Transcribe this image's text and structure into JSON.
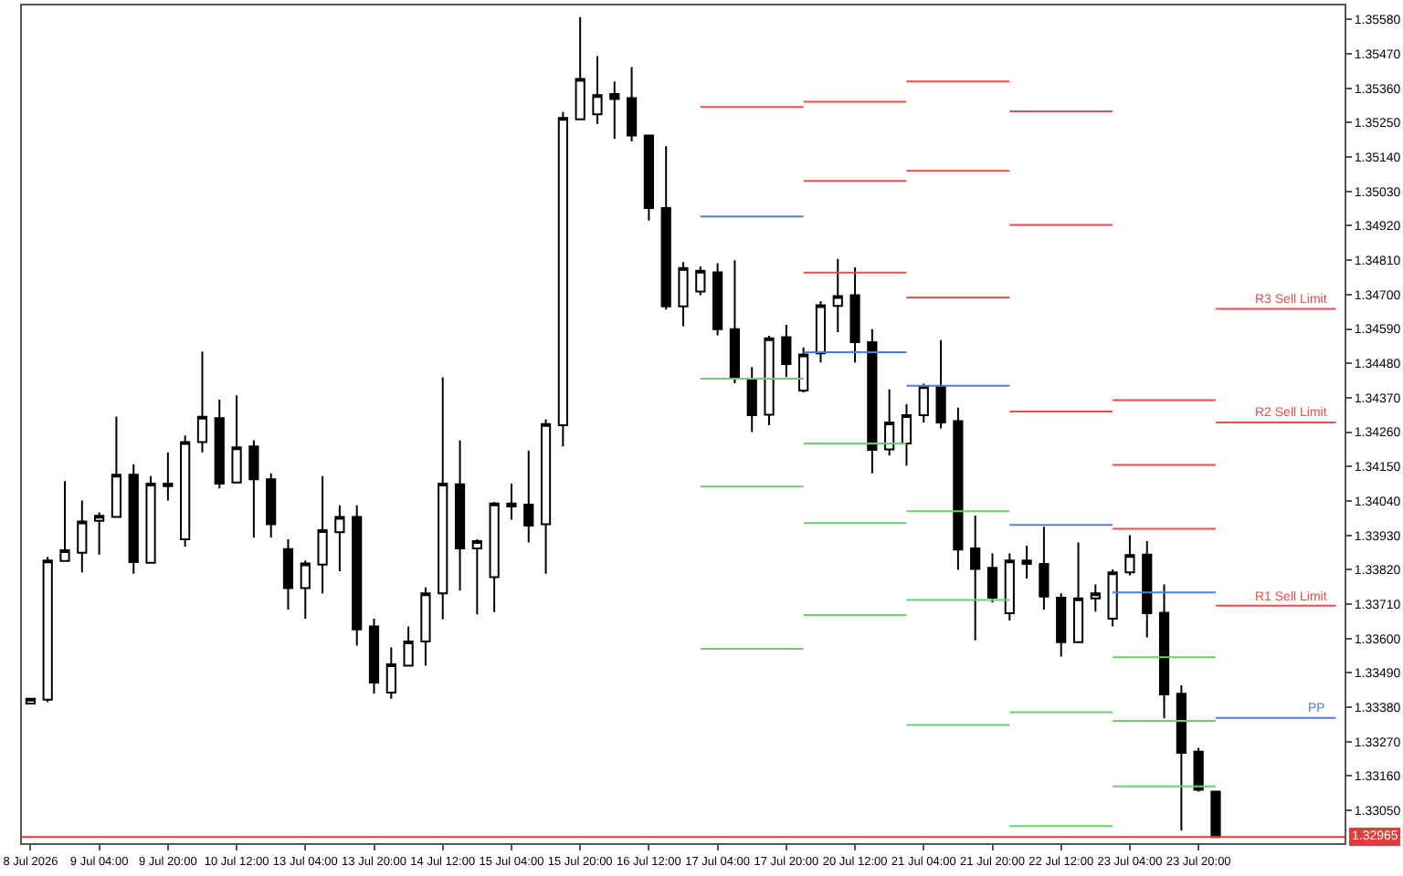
{
  "chart_data": {
    "type": "candlestick",
    "categories": [
      "8 Jul 2026",
      null,
      null,
      null,
      "9 Jul 04:00",
      null,
      null,
      null,
      "9 Jul 20:00",
      null,
      null,
      null,
      "10 Jul 12:00",
      null,
      null,
      null,
      "13 Jul 04:00",
      null,
      null,
      null,
      "13 Jul 20:00",
      null,
      null,
      null,
      "14 Jul 12:00",
      null,
      null,
      null,
      "15 Jul 04:00",
      null,
      null,
      null,
      "15 Jul 20:00",
      null,
      null,
      null,
      "16 Jul 12:00",
      null,
      null,
      null,
      "17 Jul 04:00",
      null,
      null,
      null,
      "17 Jul 20:00",
      null,
      null,
      null,
      "20 Jul 12:00",
      null,
      null,
      null,
      "21 Jul 04:00",
      null,
      null,
      null,
      "21 Jul 20:00",
      null,
      null,
      null,
      "22 Jul 12:00",
      null,
      null,
      null,
      "23 Jul 04:00",
      null,
      null,
      null,
      "23 Jul 20:00",
      null,
      null,
      null,
      null,
      null,
      null,
      null,
      null
    ],
    "ohlc": [
      [
        1.33392,
        1.33407,
        1.33392,
        1.33407
      ],
      [
        1.33404,
        1.33861,
        1.33396,
        1.33849
      ],
      [
        1.33848,
        1.34103,
        1.33848,
        1.33882
      ],
      [
        1.33874,
        1.34041,
        1.33811,
        1.33974
      ],
      [
        1.33976,
        1.34003,
        1.33868,
        1.33992
      ],
      [
        1.33989,
        1.3431,
        1.33989,
        1.34124
      ],
      [
        1.34124,
        1.34157,
        1.33807,
        1.33844
      ],
      [
        1.33842,
        1.34119,
        1.33842,
        1.34095
      ],
      [
        1.34095,
        1.34195,
        1.34041,
        1.34087
      ],
      [
        1.33917,
        1.34249,
        1.33894,
        1.34228
      ],
      [
        1.34228,
        1.34518,
        1.34195,
        1.34309
      ],
      [
        1.34305,
        1.34364,
        1.3408,
        1.34095
      ],
      [
        1.34099,
        1.34378,
        1.34095,
        1.34211
      ],
      [
        1.34214,
        1.34234,
        1.33923,
        1.34109
      ],
      [
        1.34109,
        1.34128,
        1.33923,
        1.33965
      ],
      [
        1.33886,
        1.33917,
        1.33692,
        1.33761
      ],
      [
        1.33761,
        1.33849,
        1.33663,
        1.3384
      ],
      [
        1.33836,
        1.34119,
        1.33744,
        1.33946
      ],
      [
        1.3394,
        1.34026,
        1.33815,
        1.33989
      ],
      [
        1.33989,
        1.34026,
        1.33577,
        1.33629
      ],
      [
        1.33638,
        1.33663,
        1.33423,
        1.33459
      ],
      [
        1.33427,
        1.33571,
        1.33407,
        1.33517
      ],
      [
        1.33513,
        1.33638,
        1.3351,
        1.3359
      ],
      [
        1.3359,
        1.33763,
        1.33513,
        1.33744
      ],
      [
        1.33744,
        1.34435,
        1.33661,
        1.34095
      ],
      [
        1.34093,
        1.34234,
        1.33753,
        1.33888
      ],
      [
        1.33888,
        1.33917,
        1.33677,
        1.33911
      ],
      [
        1.33796,
        1.34036,
        1.33684,
        1.34032
      ],
      [
        1.34032,
        1.34095,
        1.3398,
        1.34022
      ],
      [
        1.34028,
        1.34201,
        1.33907,
        1.33961
      ],
      [
        1.33965,
        1.34301,
        1.33807,
        1.34286
      ],
      [
        1.34282,
        1.35284,
        1.34214,
        1.35265
      ],
      [
        1.35261,
        1.35588,
        1.35261,
        1.3539
      ],
      [
        1.35277,
        1.35463,
        1.35246,
        1.35338
      ],
      [
        1.35342,
        1.35382,
        1.35198,
        1.35326
      ],
      [
        1.35329,
        1.35428,
        1.3519,
        1.35209
      ],
      [
        1.35209,
        1.35209,
        1.34937,
        1.34977
      ],
      [
        1.34977,
        1.35175,
        1.34652,
        1.34662
      ],
      [
        1.34662,
        1.34804,
        1.34599,
        1.34785
      ],
      [
        1.3471,
        1.3479,
        1.34698,
        1.34776
      ],
      [
        1.34771,
        1.348,
        1.3457,
        1.34589
      ],
      [
        1.34589,
        1.3481,
        1.34416,
        1.34431
      ],
      [
        1.3443,
        1.34468,
        1.3426,
        1.34314
      ],
      [
        1.34316,
        1.34568,
        1.34282,
        1.3456
      ],
      [
        1.34564,
        1.34603,
        1.34436,
        1.34478
      ],
      [
        1.34393,
        1.34531,
        1.34387,
        1.34508
      ],
      [
        1.34512,
        1.34679,
        1.34483,
        1.34666
      ],
      [
        1.34664,
        1.34814,
        1.3458,
        1.34695
      ],
      [
        1.34698,
        1.34787,
        1.34483,
        1.34548
      ],
      [
        1.34548,
        1.34589,
        1.34128,
        1.34203
      ],
      [
        1.34205,
        1.34397,
        1.34185,
        1.34291
      ],
      [
        1.34224,
        1.34349,
        1.34153,
        1.34314
      ],
      [
        1.34314,
        1.34415,
        1.34291,
        1.34407
      ],
      [
        1.34407,
        1.34554,
        1.34272,
        1.34291
      ],
      [
        1.34295,
        1.34338,
        1.33819,
        1.33884
      ],
      [
        1.33888,
        1.33993,
        1.33594,
        1.33822
      ],
      [
        1.33826,
        1.33872,
        1.33715,
        1.3373
      ],
      [
        1.33681,
        1.33872,
        1.33657,
        1.33849
      ],
      [
        1.33849,
        1.33897,
        1.33792,
        1.33838
      ],
      [
        1.33838,
        1.33957,
        1.33692,
        1.33734
      ],
      [
        1.3373,
        1.33744,
        1.33542,
        1.33588
      ],
      [
        1.33588,
        1.33907,
        1.33588,
        1.33728
      ],
      [
        1.33728,
        1.33773,
        1.33686,
        1.33744
      ],
      [
        1.33663,
        1.33821,
        1.33638,
        1.33811
      ],
      [
        1.33811,
        1.3393,
        1.33802,
        1.33867
      ],
      [
        1.33868,
        1.33911,
        1.33603,
        1.33681
      ],
      [
        1.33682,
        1.33773,
        1.33344,
        1.33421
      ],
      [
        1.33423,
        1.3345,
        1.32985,
        1.33234
      ],
      [
        1.33238,
        1.3325,
        1.3311,
        1.33116
      ],
      [
        1.3311,
        1.3311,
        1.32965,
        1.32965
      ],
      null,
      null,
      null,
      null,
      null,
      null,
      null
    ],
    "series": [
      {
        "type": "line",
        "color": "#ef4b4b",
        "values": [
          null,
          null,
          null,
          null,
          null,
          null,
          null,
          null,
          null,
          null,
          null,
          null,
          null,
          null,
          null,
          null,
          null,
          null,
          null,
          null,
          null,
          null,
          null,
          null,
          null,
          null,
          null,
          null,
          null,
          null,
          null,
          null,
          null,
          null,
          null,
          null,
          null,
          null,
          null,
          null,
          null,
          null,
          null,
          null,
          null,
          null,
          null,
          null,
          null,
          null,
          null,
          1.35382,
          1.35382,
          1.35382,
          1.35382,
          1.35382,
          1.35382,
          1.35382,
          null,
          null,
          null,
          null,
          null,
          1.34362,
          1.34362,
          1.34362,
          1.34362,
          1.34362,
          1.34362,
          1.34362,
          null,
          null,
          null,
          null,
          null,
          null,
          null
        ]
      },
      {
        "type": "line",
        "color": "#ef4b4b",
        "values": [
          null,
          null,
          null,
          null,
          null,
          null,
          null,
          null,
          null,
          null,
          null,
          null,
          null,
          null,
          null,
          null,
          null,
          null,
          null,
          null,
          null,
          null,
          null,
          null,
          null,
          null,
          null,
          null,
          null,
          null,
          null,
          null,
          null,
          null,
          null,
          null,
          null,
          null,
          null,
          null,
          null,
          null,
          null,
          null,
          null,
          null,
          null,
          null,
          null,
          null,
          null,
          1.35096,
          1.35096,
          1.35096,
          1.35096,
          1.35096,
          1.35096,
          1.35096,
          null,
          null,
          null,
          null,
          null,
          1.34155,
          1.34155,
          1.34155,
          1.34155,
          1.34155,
          1.34155,
          1.34155,
          null,
          null,
          null,
          null,
          null,
          null,
          null
        ]
      },
      {
        "type": "line",
        "color": "#ef4b4b",
        "values": [
          null,
          null,
          null,
          null,
          null,
          null,
          null,
          null,
          null,
          null,
          null,
          null,
          null,
          null,
          null,
          null,
          null,
          null,
          null,
          null,
          null,
          null,
          null,
          null,
          null,
          null,
          null,
          null,
          null,
          null,
          null,
          null,
          null,
          null,
          null,
          null,
          null,
          null,
          null,
          1.353,
          1.353,
          1.353,
          1.353,
          1.353,
          1.353,
          1.353,
          null,
          null,
          null,
          null,
          null,
          1.34691,
          1.34691,
          1.34691,
          1.34691,
          1.34691,
          1.34691,
          1.34691,
          null,
          null,
          null,
          null,
          null,
          1.33951,
          1.33951,
          1.33951,
          1.33951,
          1.33951,
          1.33951,
          1.33951,
          null,
          null,
          null,
          null,
          null,
          null,
          null
        ]
      },
      {
        "type": "line",
        "color": "#4b7fd6",
        "values": [
          null,
          null,
          null,
          null,
          null,
          null,
          null,
          null,
          null,
          null,
          null,
          null,
          null,
          null,
          null,
          null,
          null,
          null,
          null,
          null,
          null,
          null,
          null,
          null,
          null,
          null,
          null,
          null,
          null,
          null,
          null,
          null,
          null,
          null,
          null,
          null,
          null,
          null,
          null,
          1.3495,
          1.3495,
          1.3495,
          1.3495,
          1.3495,
          1.3495,
          1.3495,
          null,
          null,
          null,
          null,
          null,
          1.34408,
          1.34408,
          1.34408,
          1.34408,
          1.34408,
          1.34408,
          1.34408,
          null,
          null,
          null,
          null,
          null,
          1.33747,
          1.33747,
          1.33747,
          1.33747,
          1.33747,
          1.33747,
          1.33747,
          null,
          null,
          null,
          null,
          null,
          null,
          null
        ]
      },
      {
        "type": "line",
        "color": "#6ccf6c",
        "values": [
          null,
          null,
          null,
          null,
          null,
          null,
          null,
          null,
          null,
          null,
          null,
          null,
          null,
          null,
          null,
          null,
          null,
          null,
          null,
          null,
          null,
          null,
          null,
          null,
          null,
          null,
          null,
          null,
          null,
          null,
          null,
          null,
          null,
          null,
          null,
          null,
          null,
          null,
          null,
          1.34431,
          1.34431,
          1.34431,
          1.34431,
          1.34431,
          1.34431,
          1.34431,
          null,
          null,
          null,
          null,
          null,
          1.34007,
          1.34007,
          1.34007,
          1.34007,
          1.34007,
          1.34007,
          1.34007,
          null,
          null,
          null,
          null,
          null,
          1.3354,
          1.3354,
          1.3354,
          1.3354,
          1.3354,
          1.3354,
          1.3354,
          null,
          null,
          null,
          null,
          null,
          null,
          null
        ]
      },
      {
        "type": "line",
        "color": "#6ccf6c",
        "values": [
          null,
          null,
          null,
          null,
          null,
          null,
          null,
          null,
          null,
          null,
          null,
          null,
          null,
          null,
          null,
          null,
          null,
          null,
          null,
          null,
          null,
          null,
          null,
          null,
          null,
          null,
          null,
          null,
          null,
          null,
          null,
          null,
          null,
          null,
          null,
          null,
          null,
          null,
          null,
          1.34086,
          1.34086,
          1.34086,
          1.34086,
          1.34086,
          1.34086,
          1.34086,
          null,
          null,
          null,
          null,
          null,
          1.33723,
          1.33723,
          1.33723,
          1.33723,
          1.33723,
          1.33723,
          1.33723,
          null,
          null,
          null,
          null,
          null,
          1.33336,
          1.33336,
          1.33336,
          1.33336,
          1.33336,
          1.33336,
          1.33336,
          null,
          null,
          null,
          null,
          null,
          null,
          null
        ]
      },
      {
        "type": "line",
        "color": "#6ccf6c",
        "values": [
          null,
          null,
          null,
          null,
          null,
          null,
          null,
          null,
          null,
          null,
          null,
          null,
          null,
          null,
          null,
          null,
          null,
          null,
          null,
          null,
          null,
          null,
          null,
          null,
          null,
          null,
          null,
          null,
          null,
          null,
          null,
          null,
          null,
          null,
          null,
          null,
          null,
          null,
          null,
          1.33567,
          1.33567,
          1.33567,
          1.33567,
          1.33567,
          1.33567,
          1.33567,
          null,
          null,
          null,
          null,
          null,
          1.33323,
          1.33323,
          1.33323,
          1.33323,
          1.33323,
          1.33323,
          1.33323,
          null,
          null,
          null,
          null,
          null,
          1.33127,
          1.33127,
          1.33127,
          1.33127,
          1.33127,
          1.33127,
          1.33127,
          null,
          null,
          null,
          null,
          null,
          null,
          null
        ]
      },
      {
        "type": "line",
        "color": "#ef4b4b",
        "values": [
          null,
          null,
          null,
          null,
          null,
          null,
          null,
          null,
          null,
          null,
          null,
          null,
          null,
          null,
          null,
          null,
          null,
          null,
          null,
          null,
          null,
          null,
          null,
          null,
          null,
          null,
          null,
          null,
          null,
          null,
          null,
          null,
          null,
          null,
          null,
          null,
          null,
          null,
          null,
          null,
          null,
          null,
          null,
          null,
          null,
          1.35317,
          1.35317,
          1.35317,
          1.35317,
          1.35317,
          1.35317,
          1.35317,
          null,
          null,
          null,
          null,
          null,
          1.35286,
          1.35286,
          1.35286,
          1.35286,
          1.35286,
          1.35286,
          1.35286,
          null,
          null,
          null,
          null,
          null,
          null,
          null,
          null,
          null,
          null,
          null,
          null,
          null
        ]
      },
      {
        "type": "line",
        "color": "#ef4b4b",
        "values": [
          null,
          null,
          null,
          null,
          null,
          null,
          null,
          null,
          null,
          null,
          null,
          null,
          null,
          null,
          null,
          null,
          null,
          null,
          null,
          null,
          null,
          null,
          null,
          null,
          null,
          null,
          null,
          null,
          null,
          null,
          null,
          null,
          null,
          null,
          null,
          null,
          null,
          null,
          null,
          null,
          null,
          null,
          null,
          null,
          null,
          1.35064,
          1.35064,
          1.35064,
          1.35064,
          1.35064,
          1.35064,
          1.35064,
          null,
          null,
          null,
          null,
          null,
          1.34923,
          1.34923,
          1.34923,
          1.34923,
          1.34923,
          1.34923,
          1.34923,
          null,
          null,
          null,
          null,
          null,
          null,
          null,
          null,
          null,
          null,
          null,
          null,
          null
        ]
      },
      {
        "type": "line",
        "color": "#ef4b4b",
        "values": [
          null,
          null,
          null,
          null,
          null,
          null,
          null,
          null,
          null,
          null,
          null,
          null,
          null,
          null,
          null,
          null,
          null,
          null,
          null,
          null,
          null,
          null,
          null,
          null,
          null,
          null,
          null,
          null,
          null,
          null,
          null,
          null,
          null,
          null,
          null,
          null,
          null,
          null,
          null,
          null,
          null,
          null,
          null,
          null,
          null,
          1.3477,
          1.3477,
          1.3477,
          1.3477,
          1.3477,
          1.3477,
          1.3477,
          null,
          null,
          null,
          null,
          null,
          1.34326,
          1.34326,
          1.34326,
          1.34326,
          1.34326,
          1.34326,
          1.34326,
          null,
          null,
          null,
          null,
          null,
          null,
          null,
          null,
          null,
          null,
          null,
          null,
          null
        ]
      },
      {
        "type": "line",
        "color": "#4b7fd6",
        "values": [
          null,
          null,
          null,
          null,
          null,
          null,
          null,
          null,
          null,
          null,
          null,
          null,
          null,
          null,
          null,
          null,
          null,
          null,
          null,
          null,
          null,
          null,
          null,
          null,
          null,
          null,
          null,
          null,
          null,
          null,
          null,
          null,
          null,
          null,
          null,
          null,
          null,
          null,
          null,
          null,
          null,
          null,
          null,
          null,
          null,
          1.34516,
          1.34516,
          1.34516,
          1.34516,
          1.34516,
          1.34516,
          1.34516,
          null,
          null,
          null,
          null,
          null,
          1.33963,
          1.33963,
          1.33963,
          1.33963,
          1.33963,
          1.33963,
          1.33963,
          null,
          null,
          null,
          null,
          null,
          null,
          null,
          null,
          null,
          null,
          null,
          null,
          null
        ]
      },
      {
        "type": "line",
        "color": "#6ccf6c",
        "values": [
          null,
          null,
          null,
          null,
          null,
          null,
          null,
          null,
          null,
          null,
          null,
          null,
          null,
          null,
          null,
          null,
          null,
          null,
          null,
          null,
          null,
          null,
          null,
          null,
          null,
          null,
          null,
          null,
          null,
          null,
          null,
          null,
          null,
          null,
          null,
          null,
          null,
          null,
          null,
          null,
          null,
          null,
          null,
          null,
          null,
          1.34224,
          1.34224,
          1.34224,
          1.34224,
          1.34224,
          1.34224,
          1.34224,
          null,
          null,
          null,
          null,
          null,
          1.33364,
          1.33364,
          1.33364,
          1.33364,
          1.33364,
          1.33364,
          1.33364,
          null,
          null,
          null,
          null,
          null,
          null,
          null,
          null,
          null,
          null,
          null,
          null,
          null
        ]
      },
      {
        "type": "line",
        "color": "#6ccf6c",
        "values": [
          null,
          null,
          null,
          null,
          null,
          null,
          null,
          null,
          null,
          null,
          null,
          null,
          null,
          null,
          null,
          null,
          null,
          null,
          null,
          null,
          null,
          null,
          null,
          null,
          null,
          null,
          null,
          null,
          null,
          null,
          null,
          null,
          null,
          null,
          null,
          null,
          null,
          null,
          null,
          null,
          null,
          null,
          null,
          null,
          null,
          1.33969,
          1.33969,
          1.33969,
          1.33969,
          1.33969,
          1.33969,
          1.33969,
          null,
          null,
          null,
          null,
          null,
          1.33,
          1.33,
          1.33,
          1.33,
          1.33,
          1.33,
          1.33,
          null,
          null,
          null,
          null,
          null,
          null,
          null,
          null,
          null,
          null,
          null,
          null,
          null
        ]
      },
      {
        "type": "line",
        "color": "#6ccf6c",
        "values": [
          null,
          null,
          null,
          null,
          null,
          null,
          null,
          null,
          null,
          null,
          null,
          null,
          null,
          null,
          null,
          null,
          null,
          null,
          null,
          null,
          null,
          null,
          null,
          null,
          null,
          null,
          null,
          null,
          null,
          null,
          null,
          null,
          null,
          null,
          null,
          null,
          null,
          null,
          null,
          null,
          null,
          null,
          null,
          null,
          null,
          1.33675,
          1.33675,
          1.33675,
          1.33675,
          1.33675,
          1.33675,
          1.33675,
          null,
          null,
          null,
          null,
          null,
          null,
          null,
          null,
          null,
          null,
          null,
          null,
          null,
          null,
          null,
          null,
          null,
          null,
          null,
          null,
          null,
          null,
          null,
          null,
          null
        ]
      },
      {
        "type": "line",
        "name": "R3 Sell Limit",
        "color": "#ef4b4b",
        "values": [
          null,
          null,
          null,
          null,
          null,
          null,
          null,
          null,
          null,
          null,
          null,
          null,
          null,
          null,
          null,
          null,
          null,
          null,
          null,
          null,
          null,
          null,
          null,
          null,
          null,
          null,
          null,
          null,
          null,
          null,
          null,
          null,
          null,
          null,
          null,
          null,
          null,
          null,
          null,
          null,
          null,
          null,
          null,
          null,
          null,
          null,
          null,
          null,
          null,
          null,
          null,
          null,
          null,
          null,
          null,
          null,
          null,
          null,
          null,
          null,
          null,
          null,
          null,
          null,
          null,
          null,
          null,
          null,
          null,
          1.34654,
          1.34654,
          1.34654,
          1.34654,
          1.34654,
          1.34654,
          1.34654,
          1.34654
        ]
      },
      {
        "type": "line",
        "name": "R2 Sell Limit",
        "color": "#ef4b4b",
        "values": [
          null,
          null,
          null,
          null,
          null,
          null,
          null,
          null,
          null,
          null,
          null,
          null,
          null,
          null,
          null,
          null,
          null,
          null,
          null,
          null,
          null,
          null,
          null,
          null,
          null,
          null,
          null,
          null,
          null,
          null,
          null,
          null,
          null,
          null,
          null,
          null,
          null,
          null,
          null,
          null,
          null,
          null,
          null,
          null,
          null,
          null,
          null,
          null,
          null,
          null,
          null,
          null,
          null,
          null,
          null,
          null,
          null,
          null,
          null,
          null,
          null,
          null,
          null,
          null,
          null,
          null,
          null,
          null,
          null,
          1.34291,
          1.34291,
          1.34291,
          1.34291,
          1.34291,
          1.34291,
          1.34291,
          1.34291
        ]
      },
      {
        "type": "line",
        "name": "R1 Sell Limit",
        "color": "#ef4b4b",
        "values": [
          null,
          null,
          null,
          null,
          null,
          null,
          null,
          null,
          null,
          null,
          null,
          null,
          null,
          null,
          null,
          null,
          null,
          null,
          null,
          null,
          null,
          null,
          null,
          null,
          null,
          null,
          null,
          null,
          null,
          null,
          null,
          null,
          null,
          null,
          null,
          null,
          null,
          null,
          null,
          null,
          null,
          null,
          null,
          null,
          null,
          null,
          null,
          null,
          null,
          null,
          null,
          null,
          null,
          null,
          null,
          null,
          null,
          null,
          null,
          null,
          null,
          null,
          null,
          null,
          null,
          null,
          null,
          null,
          null,
          1.33705,
          1.33705,
          1.33705,
          1.33705,
          1.33705,
          1.33705,
          1.33705,
          1.33705
        ]
      },
      {
        "type": "line",
        "name": "PP",
        "color": "#4b7fd6",
        "values": [
          null,
          null,
          null,
          null,
          null,
          null,
          null,
          null,
          null,
          null,
          null,
          null,
          null,
          null,
          null,
          null,
          null,
          null,
          null,
          null,
          null,
          null,
          null,
          null,
          null,
          null,
          null,
          null,
          null,
          null,
          null,
          null,
          null,
          null,
          null,
          null,
          null,
          null,
          null,
          null,
          null,
          null,
          null,
          null,
          null,
          null,
          null,
          null,
          null,
          null,
          null,
          null,
          null,
          null,
          null,
          null,
          null,
          null,
          null,
          null,
          null,
          null,
          null,
          null,
          null,
          null,
          null,
          null,
          null,
          1.33346,
          1.33346,
          1.33346,
          1.33346,
          1.33346,
          1.33346,
          1.33346,
          1.33346
        ]
      }
    ],
    "ref_lines": [
      {
        "axis": "y",
        "value": 1.32965,
        "label": "1.32965",
        "color": "#e03c3c"
      }
    ],
    "ylim": [
      1.32945,
      1.35625
    ],
    "yticks": [
      {
        "value": 1.3305,
        "label": "1.33050"
      },
      {
        "value": 1.3316,
        "label": "1.33160"
      },
      {
        "value": 1.3327,
        "label": "1.33270"
      },
      {
        "value": 1.3338,
        "label": "1.33380"
      },
      {
        "value": 1.3349,
        "label": "1.33490"
      },
      {
        "value": 1.336,
        "label": "1.33600"
      },
      {
        "value": 1.3371,
        "label": "1.33710"
      },
      {
        "value": 1.3382,
        "label": "1.33820"
      },
      {
        "value": 1.3393,
        "label": "1.33930"
      },
      {
        "value": 1.3404,
        "label": "1.34040"
      },
      {
        "value": 1.3415,
        "label": "1.34150"
      },
      {
        "value": 1.3426,
        "label": "1.34260"
      },
      {
        "value": 1.3437,
        "label": "1.34370"
      },
      {
        "value": 1.3448,
        "label": "1.34480"
      },
      {
        "value": 1.3459,
        "label": "1.34590"
      },
      {
        "value": 1.347,
        "label": "1.34700"
      },
      {
        "value": 1.3481,
        "label": "1.34810"
      },
      {
        "value": 1.3492,
        "label": "1.34920"
      },
      {
        "value": 1.3503,
        "label": "1.35030"
      },
      {
        "value": 1.3514,
        "label": "1.35140"
      },
      {
        "value": 1.3525,
        "label": "1.35250"
      },
      {
        "value": 1.3536,
        "label": "1.35360"
      },
      {
        "value": 1.3547,
        "label": "1.35470"
      },
      {
        "value": 1.3558,
        "label": "1.35580"
      }
    ]
  }
}
